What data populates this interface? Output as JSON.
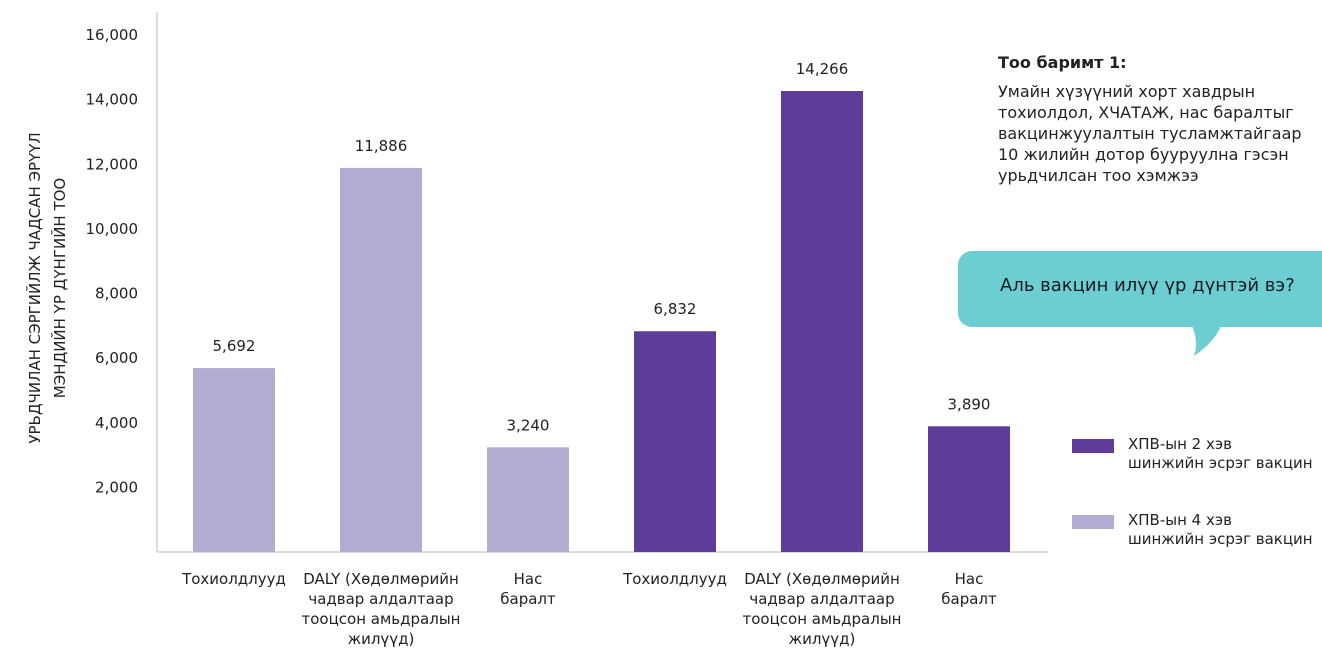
{
  "chart_data": {
    "type": "bar",
    "ylabel": [
      "УРЬДЧИЛАН СЭРГИЙЛЖ ЧАДСАН ЭРҮҮЛ",
      "МЭНДИЙН ҮР ДҮНГИЙН ТОО"
    ],
    "ylim": [
      0,
      16000
    ],
    "yticks": [
      "2,000",
      "4,000",
      "6,000",
      "8,000",
      "10,000",
      "12,000",
      "14,000",
      "16,000"
    ],
    "grid": false,
    "legend_position": "right",
    "categories": [
      [
        "Тохиолдлууд"
      ],
      [
        "DALY (Хөдөлмөрийн",
        "чадвар алдалтаар",
        "тооцсон амьдралын",
        "жилүүд)"
      ],
      [
        "Нас",
        "баралт"
      ],
      [
        "Тохиолдлууд"
      ],
      [
        "DALY (Хөдөлмөрийн",
        "чадвар алдалтаар",
        "тооцсон амьдралын",
        "жилүүд)"
      ],
      [
        "Нас",
        "баралт"
      ]
    ],
    "bars": [
      {
        "category_index": 0,
        "value": 5692,
        "label": "5,692",
        "series": "hpv4"
      },
      {
        "category_index": 1,
        "value": 11886,
        "label": "11,886",
        "series": "hpv4"
      },
      {
        "category_index": 2,
        "value": 3240,
        "label": "3,240",
        "series": "hpv4"
      },
      {
        "category_index": 3,
        "value": 6832,
        "label": "6,832",
        "series": "hpv2"
      },
      {
        "category_index": 4,
        "value": 14266,
        "label": "14,266",
        "series": "hpv2"
      },
      {
        "category_index": 5,
        "value": 3890,
        "label": "3,890",
        "series": "hpv2"
      }
    ],
    "series": [
      {
        "id": "hpv2",
        "name": [
          "ХПВ-ын 2 хэв",
          "шинжийн эсрэг вакцин"
        ],
        "color": "#5e3c99"
      },
      {
        "id": "hpv4",
        "name": [
          "ХПВ-ын 4 хэв",
          "шинжийн эсрэг вакцин"
        ],
        "color": "#b2acd3"
      }
    ]
  },
  "fact_box": {
    "title": "Тоо баримт 1:",
    "lines": [
      "Умайн хүзүүний хорт хавдрын",
      "тохиолдол, ХЧАТАЖ, нас баралтыг",
      "вакцинжуулалтын тусламжтайгаар",
      "10 жилийн дотор бууруулна гэсэн",
      "урьдчилсан тоо хэмжээ"
    ]
  },
  "callout": {
    "text": "Аль вакцин илүү үр дүнтэй вэ?",
    "color": "#6ccdd2"
  }
}
